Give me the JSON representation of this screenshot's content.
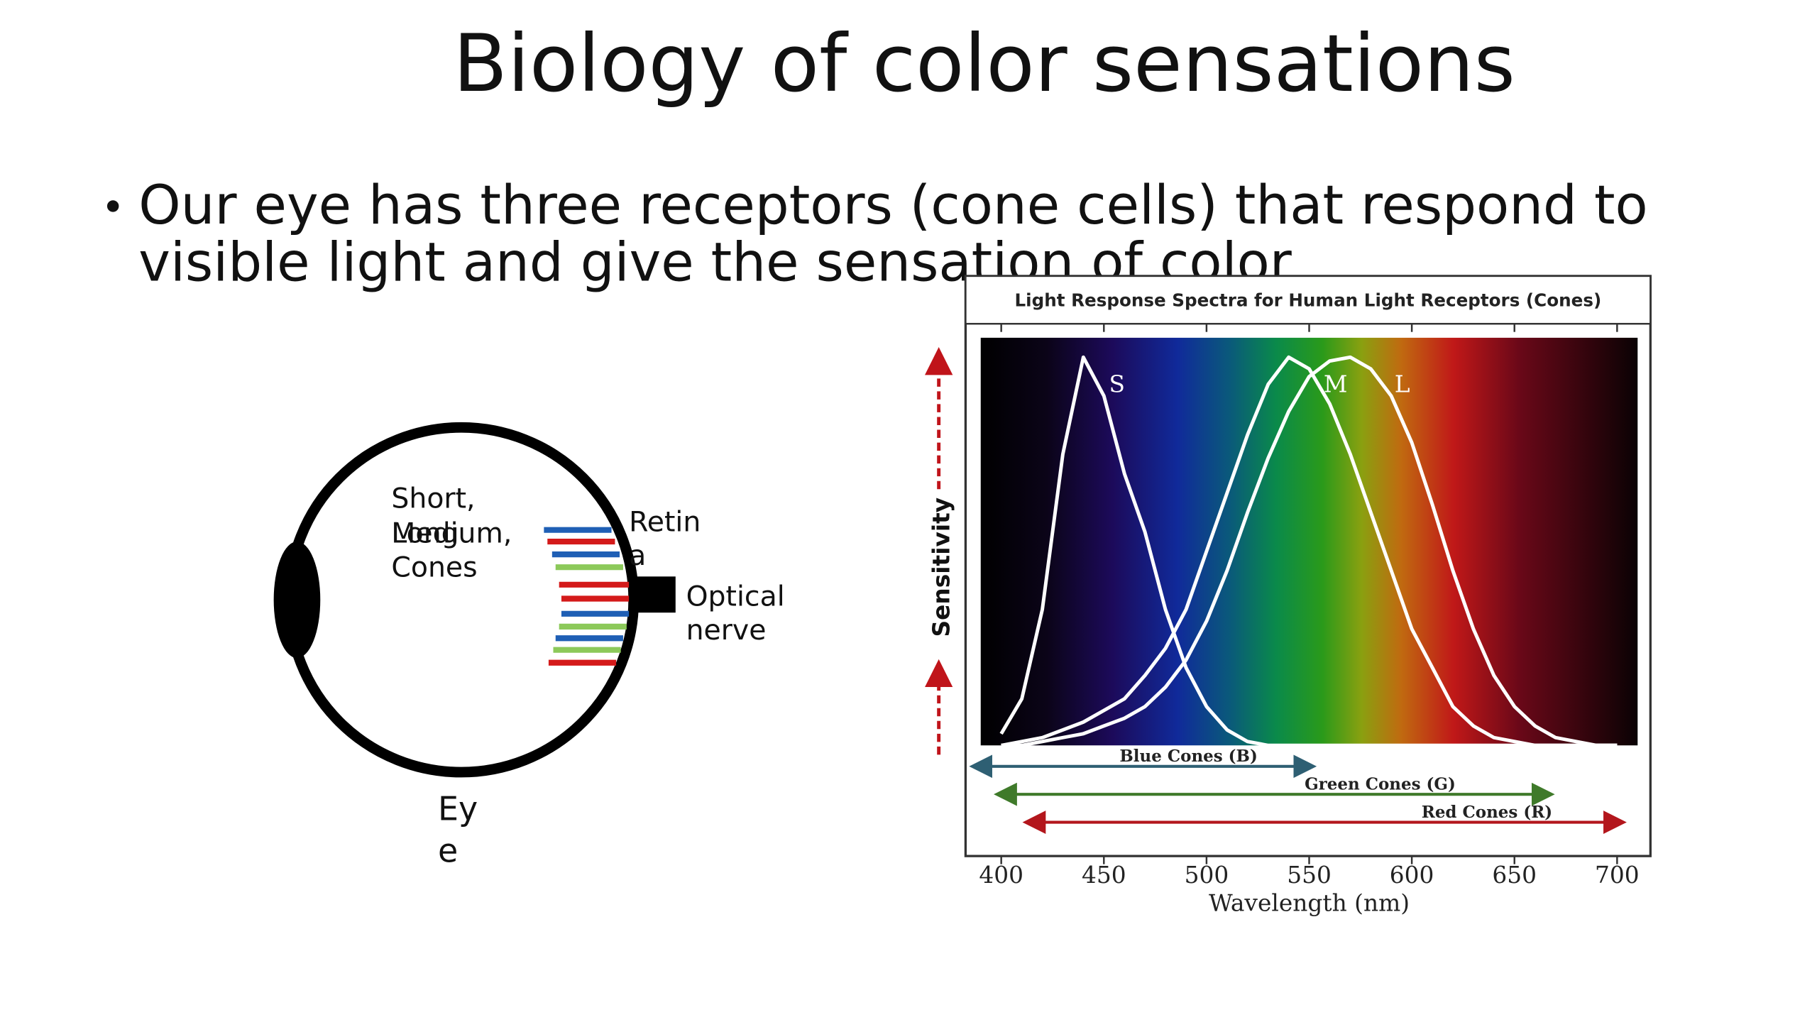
{
  "slide": {
    "title": "Biology of color sensations",
    "bullet_lines": [
      "Our eye has three receptors (cone cells) that respond to",
      "visible light and  give the sensation of color"
    ]
  },
  "eye_diagram": {
    "cones_label_lines": [
      "Short,",
      "Medium,",
      "Long",
      "Cones"
    ],
    "retina_label_lines": [
      "Retin",
      "a"
    ],
    "nerve_label_lines": [
      "Optical",
      "nerve"
    ],
    "eye_label_lines": [
      "Ey",
      "e"
    ]
  },
  "chart_data": {
    "type": "line",
    "title": "Light Response Spectra for Human Light Receptors (Cones)",
    "x_label": "Wavelength (nm)",
    "y_label": "Sensitivity",
    "xlim": [
      390,
      710
    ],
    "ylim": [
      0,
      1.05
    ],
    "xticks": [
      400,
      450,
      500,
      550,
      600,
      650,
      700
    ],
    "x": [
      400,
      410,
      420,
      430,
      440,
      450,
      460,
      470,
      480,
      490,
      500,
      510,
      520,
      530,
      540,
      550,
      560,
      570,
      580,
      590,
      600,
      610,
      620,
      630,
      640,
      650,
      660,
      670,
      680,
      690,
      700
    ],
    "series": [
      {
        "name": "S",
        "color": "#ffffff",
        "values": [
          0.03,
          0.12,
          0.35,
          0.75,
          1.0,
          0.9,
          0.7,
          0.55,
          0.35,
          0.2,
          0.1,
          0.04,
          0.01,
          0,
          0,
          0,
          0,
          0,
          0,
          0,
          0,
          0,
          0,
          0,
          0,
          0,
          0,
          0,
          0,
          0,
          0
        ]
      },
      {
        "name": "M",
        "color": "#ffffff",
        "values": [
          0,
          0.01,
          0.02,
          0.04,
          0.06,
          0.09,
          0.12,
          0.18,
          0.25,
          0.35,
          0.5,
          0.65,
          0.8,
          0.93,
          1.0,
          0.97,
          0.88,
          0.75,
          0.6,
          0.45,
          0.3,
          0.2,
          0.1,
          0.05,
          0.02,
          0.01,
          0,
          0,
          0,
          0,
          0
        ]
      },
      {
        "name": "L",
        "color": "#ffffff",
        "values": [
          0,
          0,
          0.01,
          0.02,
          0.03,
          0.05,
          0.07,
          0.1,
          0.15,
          0.22,
          0.32,
          0.45,
          0.6,
          0.74,
          0.86,
          0.95,
          0.99,
          1.0,
          0.97,
          0.9,
          0.78,
          0.62,
          0.45,
          0.3,
          0.18,
          0.1,
          0.05,
          0.02,
          0.01,
          0,
          0
        ]
      }
    ],
    "cone_ranges": [
      {
        "label": "Blue Cones (B)",
        "color": "#2e5f73",
        "range": [
          390,
          548
        ]
      },
      {
        "label": "Green Cones (G)",
        "color": "#3f7a2a",
        "range": [
          402,
          664
        ]
      },
      {
        "label": "Red Cones (R)",
        "color": "#b3161c",
        "range": [
          416,
          699
        ]
      }
    ]
  }
}
